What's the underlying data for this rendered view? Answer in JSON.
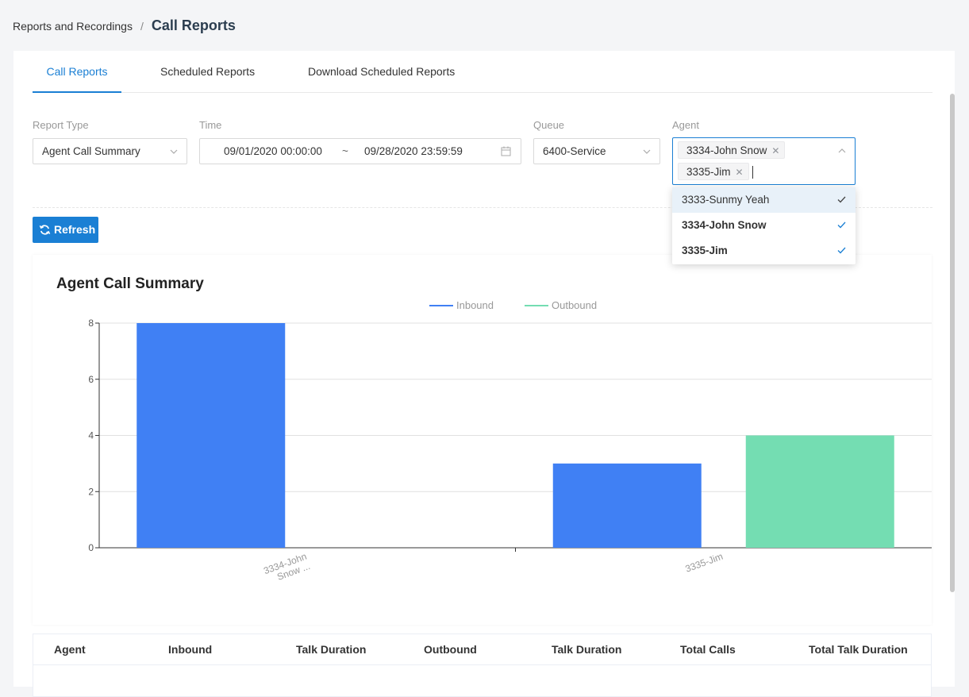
{
  "breadcrumb": {
    "parent": "Reports and Recordings",
    "separator": "/",
    "current": "Call Reports"
  },
  "tabs": [
    {
      "label": "Call Reports",
      "active": true
    },
    {
      "label": "Scheduled Reports",
      "active": false
    },
    {
      "label": "Download Scheduled Reports",
      "active": false
    }
  ],
  "filters": {
    "report_type": {
      "label": "Report Type",
      "value": "Agent Call Summary"
    },
    "time": {
      "label": "Time",
      "start": "09/01/2020 00:00:00",
      "separator": "~",
      "end": "09/28/2020 23:59:59"
    },
    "queue": {
      "label": "Queue",
      "value": "6400-Service"
    },
    "agent": {
      "label": "Agent",
      "selected": [
        "3334-John Snow",
        "3335-Jim"
      ],
      "options": [
        {
          "label": "3333-Sunmy Yeah",
          "selected": false
        },
        {
          "label": "3334-John Snow",
          "selected": true
        },
        {
          "label": "3335-Jim",
          "selected": true
        }
      ]
    }
  },
  "refresh_label": "Refresh",
  "colors": {
    "accent": "#1a7fd4",
    "inbound": "#4080f4",
    "outbound": "#74ddb2"
  },
  "chart_data": {
    "type": "bar",
    "title": "Agent Call Summary",
    "categories": [
      "3334-John Snow ...",
      "3335-Jim"
    ],
    "series": [
      {
        "name": "Inbound",
        "values": [
          8,
          3
        ]
      },
      {
        "name": "Outbound",
        "values": [
          0,
          4
        ]
      }
    ],
    "ylim": [
      0,
      8
    ],
    "yticks": [
      0,
      2,
      4,
      6,
      8
    ],
    "xlabel": "",
    "ylabel": "",
    "legend": "top-center",
    "grid": true
  },
  "table": {
    "headers": [
      "Agent",
      "Inbound",
      "Talk Duration",
      "Outbound",
      "Talk Duration",
      "Total Calls",
      "Total Talk Duration"
    ]
  }
}
